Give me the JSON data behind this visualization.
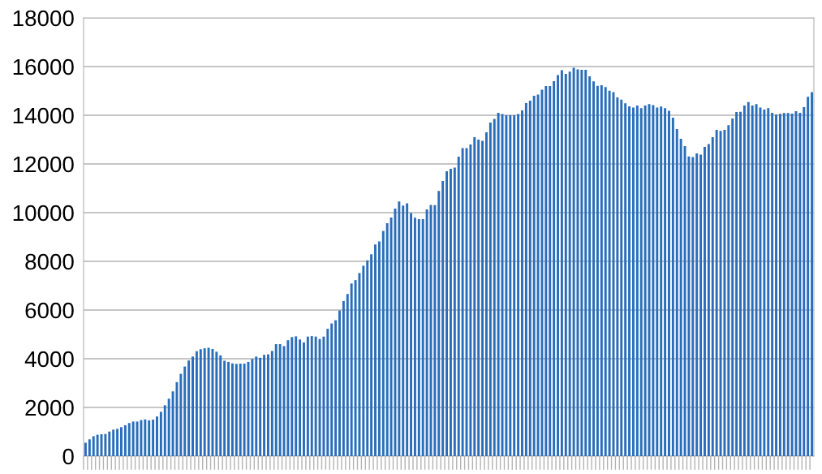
{
  "chart_data": {
    "type": "bar",
    "color": "#2a6ebb",
    "categories": [
      null,
      null,
      null,
      null,
      null,
      null,
      null,
      null,
      null,
      null,
      null,
      null,
      null,
      null,
      null,
      null,
      null,
      null,
      null,
      null,
      null,
      null,
      null,
      null,
      null,
      null,
      null,
      null,
      null,
      null,
      null,
      null,
      null,
      null,
      null,
      null,
      null,
      null,
      null,
      null,
      null,
      null,
      null,
      null,
      null,
      null,
      null,
      null,
      null,
      null,
      null,
      null,
      null,
      null,
      null,
      null,
      null,
      null,
      null,
      null,
      null,
      null,
      null,
      null,
      null,
      null,
      null,
      null,
      null,
      null,
      null,
      null,
      null,
      null,
      null,
      null,
      null,
      null,
      null,
      null,
      null,
      null,
      null,
      null,
      null,
      null,
      null,
      null,
      null,
      null,
      null,
      null,
      null,
      null,
      null,
      null,
      null,
      null,
      null,
      null,
      null,
      null,
      null,
      null,
      null,
      null,
      null,
      null,
      null,
      null,
      null,
      null,
      null,
      null,
      null,
      null,
      null,
      null,
      null,
      null,
      null,
      null,
      null,
      null,
      null,
      null,
      null,
      null,
      null,
      null,
      null,
      null,
      null,
      null,
      null,
      null,
      null,
      null,
      null,
      null,
      null,
      null,
      null,
      null,
      null,
      null,
      null,
      null,
      null,
      null,
      null,
      null,
      null,
      null,
      null,
      null,
      null,
      null,
      null,
      null,
      null,
      null,
      null,
      null,
      null,
      null,
      null,
      null,
      null,
      null,
      null,
      null,
      null,
      null,
      null,
      null,
      null,
      null,
      null,
      null,
      null,
      null,
      null,
      null
    ],
    "values": [
      550,
      690,
      820,
      880,
      900,
      910,
      1010,
      1090,
      1120,
      1190,
      1270,
      1360,
      1420,
      1420,
      1480,
      1510,
      1470,
      1500,
      1630,
      1820,
      2090,
      2360,
      2660,
      3040,
      3380,
      3680,
      3930,
      4090,
      4310,
      4390,
      4430,
      4450,
      4400,
      4290,
      4140,
      3920,
      3870,
      3810,
      3790,
      3800,
      3800,
      3870,
      3990,
      4090,
      4040,
      4160,
      4180,
      4320,
      4600,
      4600,
      4520,
      4760,
      4890,
      4920,
      4790,
      4670,
      4910,
      4930,
      4910,
      4810,
      4910,
      5230,
      5450,
      5580,
      5980,
      6370,
      6660,
      7090,
      7230,
      7520,
      7820,
      8040,
      8290,
      8690,
      8820,
      9250,
      9570,
      9800,
      10170,
      10460,
      10290,
      10380,
      9980,
      9790,
      9730,
      9730,
      10130,
      10320,
      10310,
      10890,
      11300,
      11700,
      11800,
      11850,
      12300,
      12650,
      12650,
      12800,
      13100,
      13000,
      12950,
      13300,
      13700,
      13850,
      14100,
      14050,
      14000,
      14000,
      14000,
      14050,
      14200,
      14500,
      14600,
      14800,
      14850,
      15050,
      15200,
      15200,
      15400,
      15650,
      15850,
      15700,
      15790,
      15950,
      15880,
      15870,
      15870,
      15600,
      15390,
      15210,
      15230,
      15160,
      15010,
      14950,
      14730,
      14640,
      14490,
      14370,
      14320,
      14400,
      14290,
      14400,
      14460,
      14420,
      14320,
      14360,
      14290,
      14180,
      13900,
      13430,
      13030,
      12730,
      12310,
      12280,
      12430,
      12380,
      12700,
      12820,
      13100,
      13400,
      13360,
      13400,
      13590,
      13870,
      14130,
      14140,
      14400,
      14540,
      14400,
      14460,
      14320,
      14230,
      14290,
      14100,
      14030,
      14060,
      14090,
      14090,
      14070,
      14170,
      14100,
      14330,
      14760,
      14950
    ],
    "ylim": [
      0,
      18000
    ],
    "yticks": [
      0,
      2000,
      4000,
      6000,
      8000,
      10000,
      12000,
      14000,
      16000,
      18000
    ],
    "grid": "y",
    "legend": false
  }
}
